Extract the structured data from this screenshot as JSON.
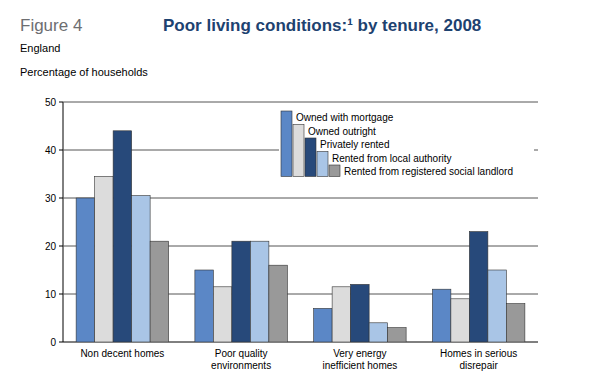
{
  "chart_data": {
    "type": "bar",
    "figure_label": "Figure 4",
    "title": "Poor living conditions:¹ by tenure, 2008",
    "subtitle": "England",
    "y_label": "Percentage of households",
    "categories": [
      "Non decent homes",
      "Poor quality environments",
      "Very energy inefficient homes",
      "Homes in serious disrepair"
    ],
    "series": [
      {
        "name": "Owned with mortgage",
        "color": "#5b87c6",
        "values": [
          30,
          15,
          7,
          11
        ]
      },
      {
        "name": "Owned outright",
        "color": "#dcdcdc",
        "values": [
          34.5,
          11.5,
          11.5,
          9
        ]
      },
      {
        "name": "Privately rented",
        "color": "#27497a",
        "values": [
          44,
          21,
          12,
          23
        ]
      },
      {
        "name": "Rented from local authority",
        "color": "#a9c5e6",
        "values": [
          30.5,
          21,
          4,
          15
        ]
      },
      {
        "name": "Rented from registered social landlord",
        "color": "#999999",
        "values": [
          21,
          16,
          3,
          8
        ]
      }
    ],
    "ylim": [
      0,
      50
    ],
    "yticks": [
      0,
      10,
      20,
      30,
      40,
      50
    ],
    "grid": true,
    "legend": "top-right"
  }
}
